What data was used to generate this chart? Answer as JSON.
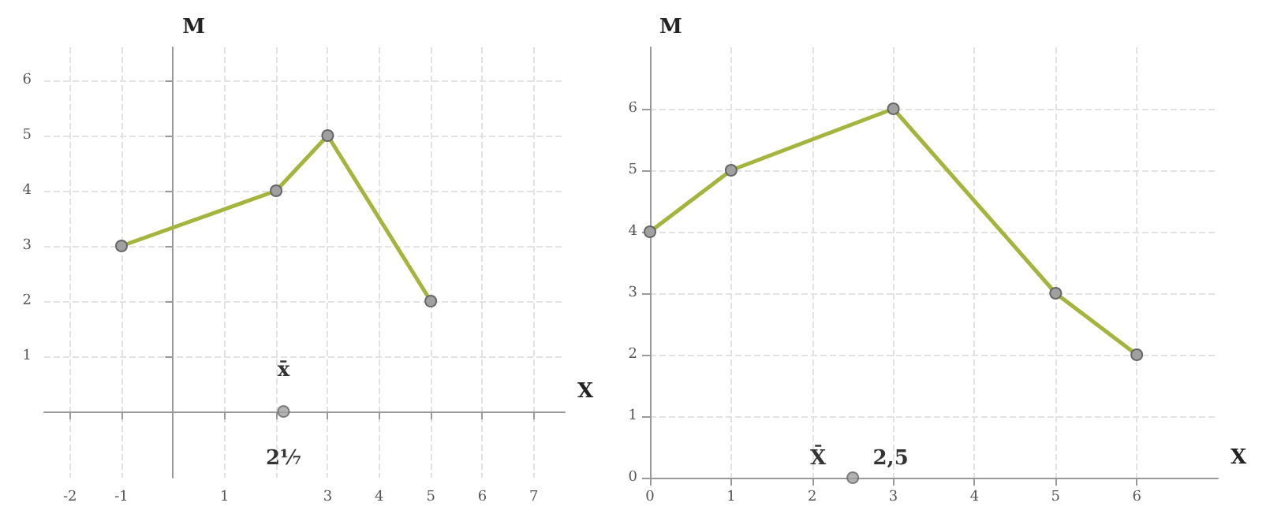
{
  "chart_data": [
    {
      "type": "line",
      "xlabel": "X",
      "ylabel": "M",
      "xlim": [
        -2.5,
        7.6
      ],
      "ylim": [
        -1.2,
        6.6
      ],
      "xticks": [
        -2,
        -1,
        1,
        {
          "value": 2,
          "label": null
        },
        3,
        4,
        5,
        6,
        7
      ],
      "yticks": [
        1,
        2,
        3,
        4,
        5,
        6
      ],
      "grid": true,
      "marker": "circle",
      "series": [
        {
          "color": "#a4b43c",
          "x": [
            -1,
            2,
            3,
            5
          ],
          "values": [
            3,
            4,
            5,
            2
          ]
        },
        {
          "type": "scatter",
          "color": "#a0a0a0",
          "x": [
            2.143
          ],
          "values": [
            0
          ]
        }
      ],
      "annotations": [
        "x̄",
        "2⅐"
      ]
    },
    {
      "type": "line",
      "xlabel": "X",
      "ylabel": "M",
      "xlim": [
        0,
        7
      ],
      "ylim": [
        0,
        7
      ],
      "xticks": [
        0,
        1,
        2,
        3,
        4,
        5,
        6
      ],
      "yticks": [
        0,
        1,
        2,
        3,
        4,
        5,
        6
      ],
      "grid": true,
      "marker": "circle",
      "series": [
        {
          "color": "#a4b43c",
          "x": [
            0,
            1,
            3,
            5,
            6
          ],
          "values": [
            4,
            5,
            6,
            3,
            2
          ]
        },
        {
          "type": "scatter",
          "color": "#a0a0a0",
          "x": [
            2.5
          ],
          "values": [
            0
          ]
        }
      ],
      "annotations": [
        "X̄",
        "2,5"
      ]
    }
  ]
}
